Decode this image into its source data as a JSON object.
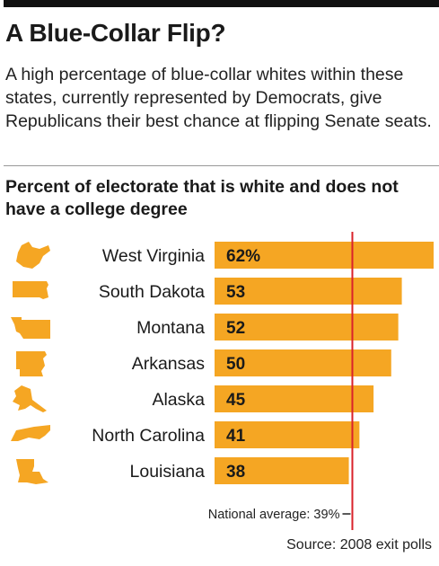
{
  "header": {
    "title": "A Blue-Collar Flip?",
    "subtitle": "A high percentage of blue-collar whites within these states, currently represented by Democrats, give Republicans their best chance at flipping Senate seats."
  },
  "footer": {
    "source": "Source: 2008 exit polls"
  },
  "colors": {
    "bar": "#F5A623",
    "reference_line": "#D9222A",
    "text": "#1a1a1a"
  },
  "chart_data": {
    "type": "bar",
    "orientation": "horizontal",
    "title": "Percent of electorate that is white and does not have a college degree",
    "xlabel": "",
    "ylabel": "",
    "categories": [
      "West Virginia",
      "South Dakota",
      "Montana",
      "Arkansas",
      "Alaska",
      "North Carolina",
      "Louisiana"
    ],
    "values": [
      62,
      53,
      52,
      50,
      45,
      41,
      38
    ],
    "value_labels": [
      "62%",
      "53",
      "52",
      "50",
      "45",
      "41",
      "38"
    ],
    "icons": [
      "west-virginia-shape-icon",
      "south-dakota-shape-icon",
      "montana-shape-icon",
      "arkansas-shape-icon",
      "alaska-shape-icon",
      "north-carolina-shape-icon",
      "louisiana-shape-icon"
    ],
    "xlim": [
      0,
      62
    ],
    "grid": false,
    "reference_line": {
      "value": 39,
      "label": "National average: 39%"
    }
  }
}
